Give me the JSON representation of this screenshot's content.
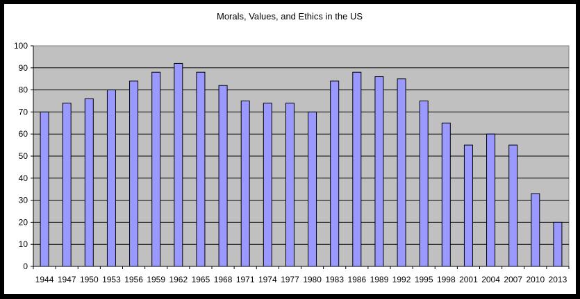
{
  "chart_data": {
    "type": "bar",
    "title": "Morals, Values, and Ethics in the US",
    "xlabel": "",
    "ylabel": "",
    "ylim": [
      0,
      100
    ],
    "yticks": [
      0,
      10,
      20,
      30,
      40,
      50,
      60,
      70,
      80,
      90,
      100
    ],
    "categories": [
      "1944",
      "1947",
      "1950",
      "1953",
      "1956",
      "1959",
      "1962",
      "1965",
      "1968",
      "1971",
      "1974",
      "1977",
      "1980",
      "1983",
      "1986",
      "1989",
      "1992",
      "1995",
      "1998",
      "2001",
      "2004",
      "2007",
      "2010",
      "2013"
    ],
    "values": [
      70,
      74,
      76,
      80,
      84,
      88,
      92,
      88,
      82,
      75,
      74,
      74,
      70,
      84,
      88,
      86,
      85,
      75,
      65,
      55,
      60,
      55,
      33,
      20
    ],
    "grid": true,
    "legend": "none",
    "colors": {
      "bar_fill": "#9999ff",
      "bar_stroke": "#000000",
      "plot_bg": "#c0c0c0",
      "grid": "#000000"
    }
  }
}
